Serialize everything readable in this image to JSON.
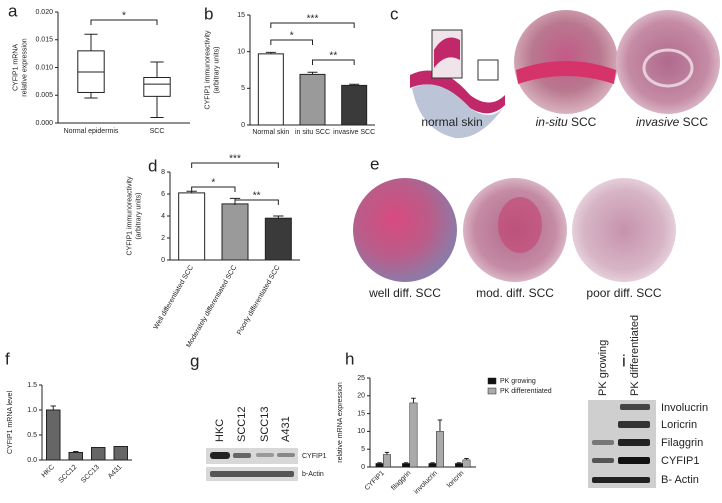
{
  "chart_data": [
    {
      "panel": "a",
      "type": "box",
      "ylabel": [
        "CYFIP1 mRNA",
        "relative expression"
      ],
      "categories": [
        "Normal epidermis",
        "SCC"
      ],
      "stats": [
        {
          "min": 0.0045,
          "q1": 0.0055,
          "median": 0.0092,
          "q3": 0.013,
          "max": 0.016
        },
        {
          "min": 0.001,
          "q1": 0.0048,
          "median": 0.007,
          "q3": 0.0082,
          "max": 0.011
        }
      ],
      "color": "#ffffff",
      "ylim": [
        0,
        0.02
      ],
      "yticks": [
        {
          "value": 0,
          "label": "0.000"
        },
        {
          "value": 0.005,
          "label": "0.005"
        },
        {
          "value": 0.01,
          "label": "0.010"
        },
        {
          "value": 0.015,
          "label": "0.015"
        },
        {
          "value": 0.02,
          "label": "0.020"
        }
      ],
      "annotations": [
        "*"
      ]
    },
    {
      "panel": "b",
      "type": "bar",
      "ylabel": [
        "CYFIP1 immunoreactivity",
        "(arbitrary units)"
      ],
      "categories": [
        "Normal skin",
        "in situ SCC",
        "invasive SCC"
      ],
      "values": [
        9.7,
        6.9,
        5.4
      ],
      "errors": [
        0.2,
        0.3,
        0.15
      ],
      "colors": [
        "#ffffff",
        "#9a9a9a",
        "#3a3a3a"
      ],
      "ylim": [
        0,
        15
      ],
      "yticks": [
        0,
        5,
        10,
        15
      ],
      "annotations": [
        "*",
        "**",
        "***"
      ]
    },
    {
      "panel": "d",
      "type": "bar",
      "ylabel": [
        "CYFIP1 immunoreactivity",
        "(arbitrary units)"
      ],
      "categories": [
        "Well differentiated SCC",
        "Moderately differentiated SCC",
        "Poorly differentiated SCC"
      ],
      "values": [
        6.1,
        5.1,
        3.8
      ],
      "errors": [
        0.15,
        0.5,
        0.2
      ],
      "colors": [
        "#ffffff",
        "#9a9a9a",
        "#3a3a3a"
      ],
      "ylim": [
        0,
        8
      ],
      "yticks": [
        0,
        2,
        4,
        6,
        8
      ],
      "annotations": [
        "*",
        "**",
        "***"
      ]
    },
    {
      "panel": "f",
      "type": "bar",
      "ylabel": [
        "CYFIP1 mRNA level"
      ],
      "categories": [
        "HKC",
        "SCC12",
        "SCC13",
        "A431"
      ],
      "values": [
        1.0,
        0.15,
        0.25,
        0.27
      ],
      "errors": [
        0.08,
        0.02,
        0,
        0
      ],
      "colors": [
        "#666666",
        "#666666",
        "#666666",
        "#666666"
      ],
      "ylim": [
        0,
        1.5
      ],
      "yticks": [
        {
          "value": 0,
          "label": "0.0"
        },
        0.5,
        {
          "value": 1,
          "label": "1.0"
        },
        1.5
      ]
    },
    {
      "panel": "h",
      "type": "grouped-bar",
      "ylabel": [
        "relative mRNA expression"
      ],
      "categories": [
        "CYFIP1",
        "filaggrin",
        "involucrin",
        "loricrin"
      ],
      "series": [
        {
          "name": "PK growing",
          "color": "#111111",
          "values": [
            1,
            1,
            1,
            1
          ],
          "errors": [
            0.2,
            0.2,
            0.2,
            0.2
          ]
        },
        {
          "name": "PK differentiated",
          "color": "#aaaaaa",
          "values": [
            3.5,
            18,
            10,
            2
          ],
          "errors": [
            0.6,
            1.3,
            3.2,
            0.4
          ]
        }
      ],
      "ylim": [
        0,
        25
      ],
      "yticks": [
        0,
        5,
        10,
        15,
        20,
        25
      ]
    }
  ],
  "micrographs": {
    "panel": "c",
    "labels": [
      {
        "text": "normal skin"
      },
      {
        "italic": "in-situ",
        "text": "SCC"
      },
      {
        "italic": "invasive",
        "text": "SCC"
      }
    ]
  },
  "micrographs_grade": {
    "panel": "e",
    "labels": [
      "well diff. SCC",
      "mod. diff. SCC",
      "poor diff. SCC"
    ]
  },
  "blot_lines": {
    "panel": "g",
    "lanes": [
      "HKC",
      "SCC12",
      "SCC13",
      "A431"
    ],
    "bands": [
      "CYFIP1",
      "b-Actin"
    ]
  },
  "blot_differentiation": {
    "panel": "i",
    "lanes": [
      "PK growing",
      "PK differentiated"
    ],
    "bands": [
      "Involucrin",
      "Loricrin",
      "Filaggrin",
      "CYFIP1",
      "B- Actin"
    ]
  }
}
